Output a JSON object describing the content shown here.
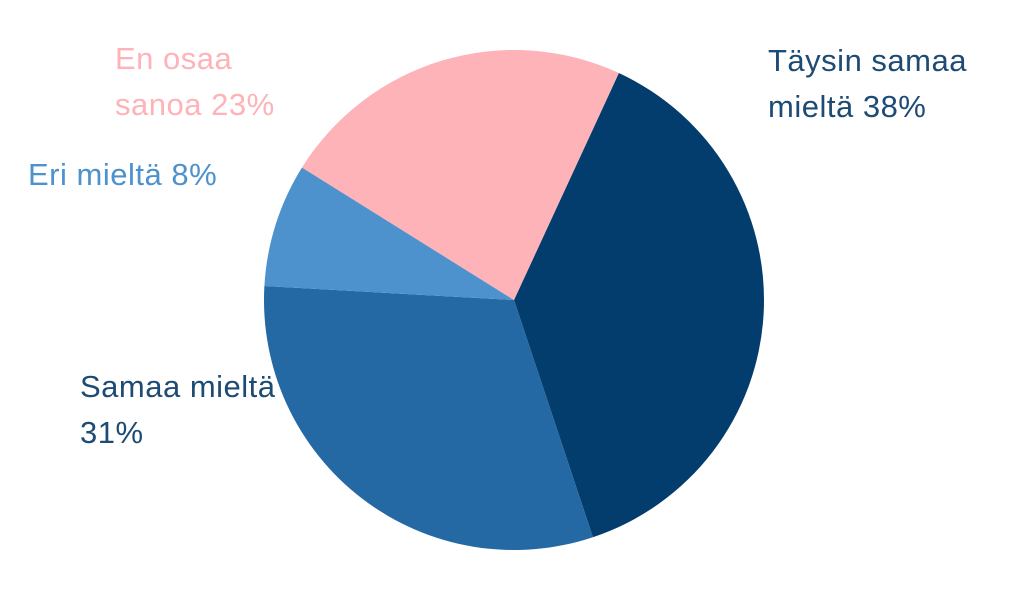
{
  "chart_data": {
    "type": "pie",
    "categories": [
      "Täysin samaa mieltä",
      "Samaa mieltä",
      "Eri mieltä",
      "En osaa sanoa"
    ],
    "values": [
      38,
      31,
      8,
      23
    ],
    "value_labels": [
      "38%",
      "31%",
      "8%",
      "23%"
    ],
    "colors": [
      "#033d6e",
      "#2468a4",
      "#4d92cc",
      "#fdb3b8"
    ],
    "label_colors": [
      "#1e4b73",
      "#1e4b73",
      "#4d92cc",
      "#fdb3b8"
    ]
  }
}
